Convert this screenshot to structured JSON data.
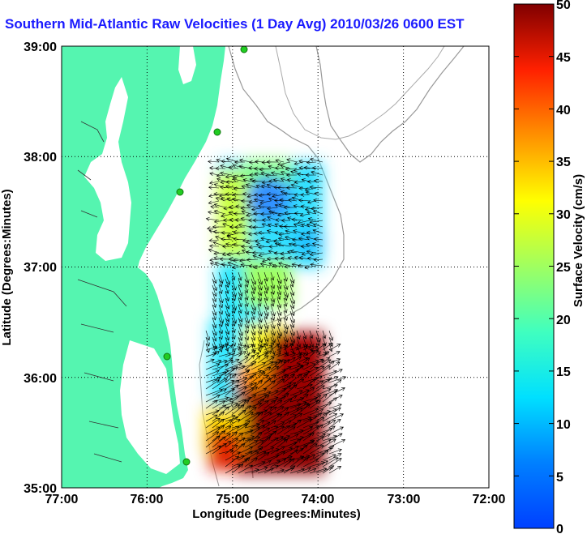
{
  "chart_data": {
    "type": "heatmap",
    "title": "Southern Mid-Atlantic Raw Velocities (1 Day Avg) 2010/03/26 0600 EST",
    "xlabel": "Longitude (Degrees:Minutes)",
    "ylabel": "Latitude (Degrees:Minutes)",
    "xlim": [
      -77,
      -72
    ],
    "ylim": [
      35,
      39
    ],
    "x_ticks": [
      "77:00",
      "76:00",
      "75:00",
      "74:00",
      "73:00",
      "72:00"
    ],
    "y_ticks": [
      "39:00",
      "38:00",
      "37:00",
      "36:00",
      "35:00"
    ],
    "grid": "dotted",
    "colorbar": {
      "label": "Surface Velocity (cm/s)",
      "range": [
        0,
        50
      ],
      "ticks": [
        "50",
        "45",
        "40",
        "35",
        "30",
        "25",
        "20",
        "15",
        "10",
        "5",
        "0"
      ],
      "colormap": "jet"
    },
    "land_color": "#55f5b0",
    "ocean_color": "#ffffff",
    "bathymetry_color": "#999999",
    "arrow_color": "#000000",
    "velocity_field_regions": [
      {
        "region": "north-west",
        "speed_cm_s": 20
      },
      {
        "region": "north-center",
        "speed_cm_s": 5
      },
      {
        "region": "north-east",
        "speed_cm_s": 9
      },
      {
        "region": "middle",
        "speed_cm_s": 12
      },
      {
        "region": "south-west",
        "speed_cm_s": 14
      },
      {
        "region": "south-center",
        "speed_cm_s": 45
      },
      {
        "region": "south-east",
        "speed_cm_s": 48
      }
    ]
  }
}
